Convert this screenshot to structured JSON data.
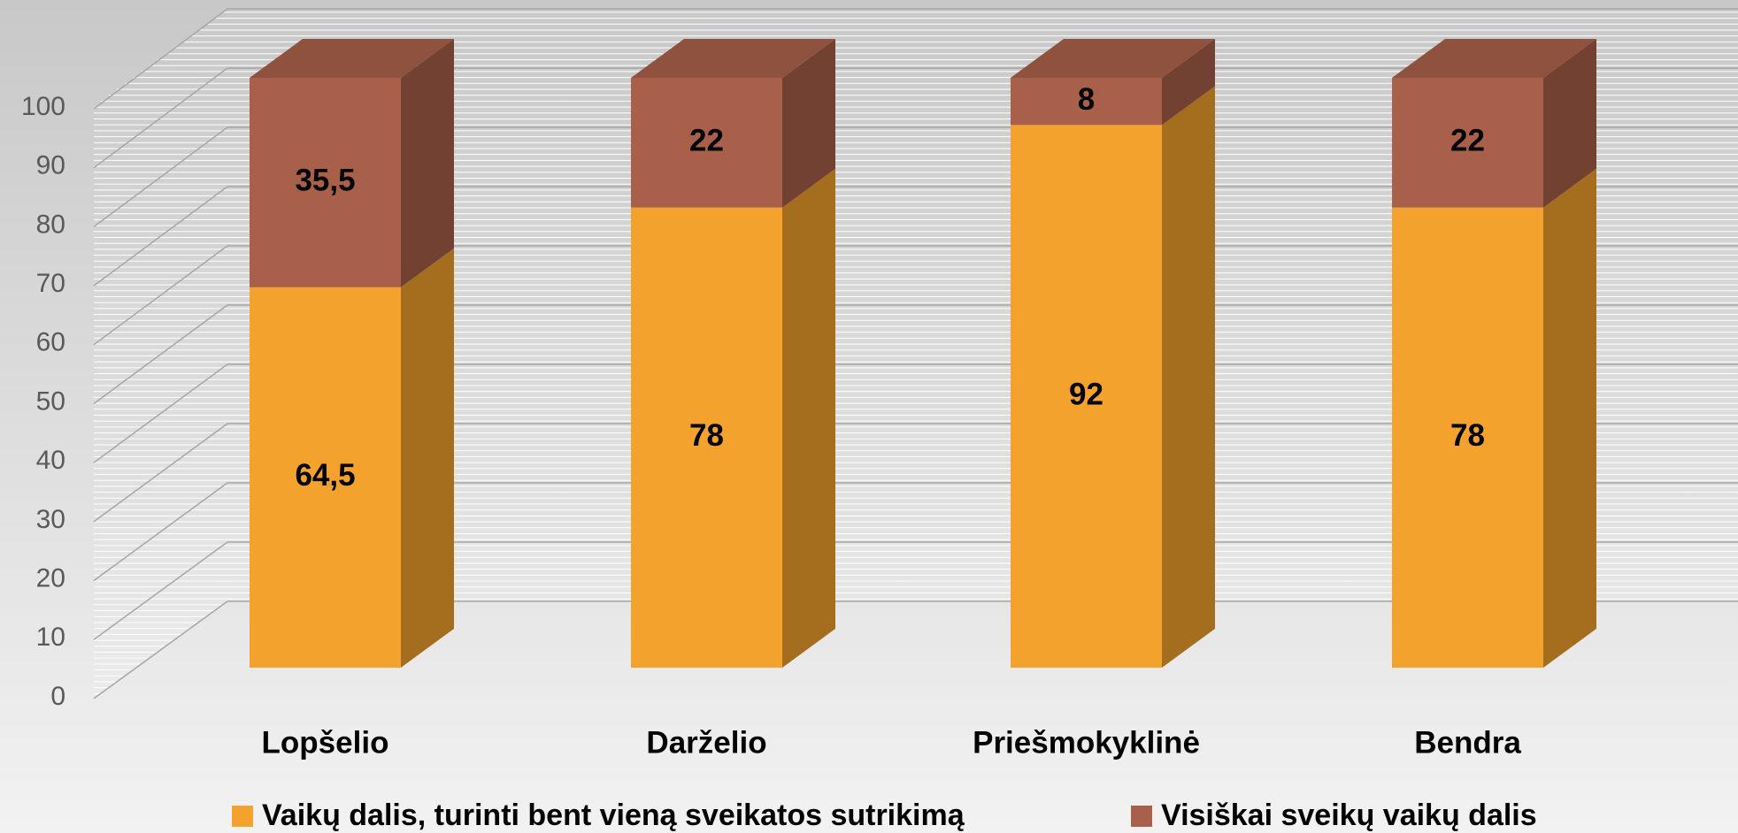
{
  "chart_data": {
    "type": "bar3d_stacked",
    "categories": [
      "Lopšelio",
      "Darželio",
      "Priešmokyklinė",
      "Bendra"
    ],
    "series": [
      {
        "name": "Vaikų dalis, turinti bent vieną sveikatos sutrikimą",
        "color": "#f2a22d",
        "values": [
          64.5,
          78,
          92,
          78
        ],
        "value_labels": [
          "64,5",
          "78",
          "92",
          "78"
        ]
      },
      {
        "name": "Visiškai sveikų vaikų dalis",
        "color": "#a8604a",
        "values": [
          35.5,
          22,
          8,
          22
        ],
        "value_labels": [
          "35,5",
          "22",
          "8",
          "22"
        ]
      }
    ],
    "ylim": [
      0,
      100
    ],
    "yticks": [
      0,
      10,
      20,
      30,
      40,
      50,
      60,
      70,
      80,
      90,
      100
    ],
    "grid": true,
    "legend": "bottom"
  }
}
